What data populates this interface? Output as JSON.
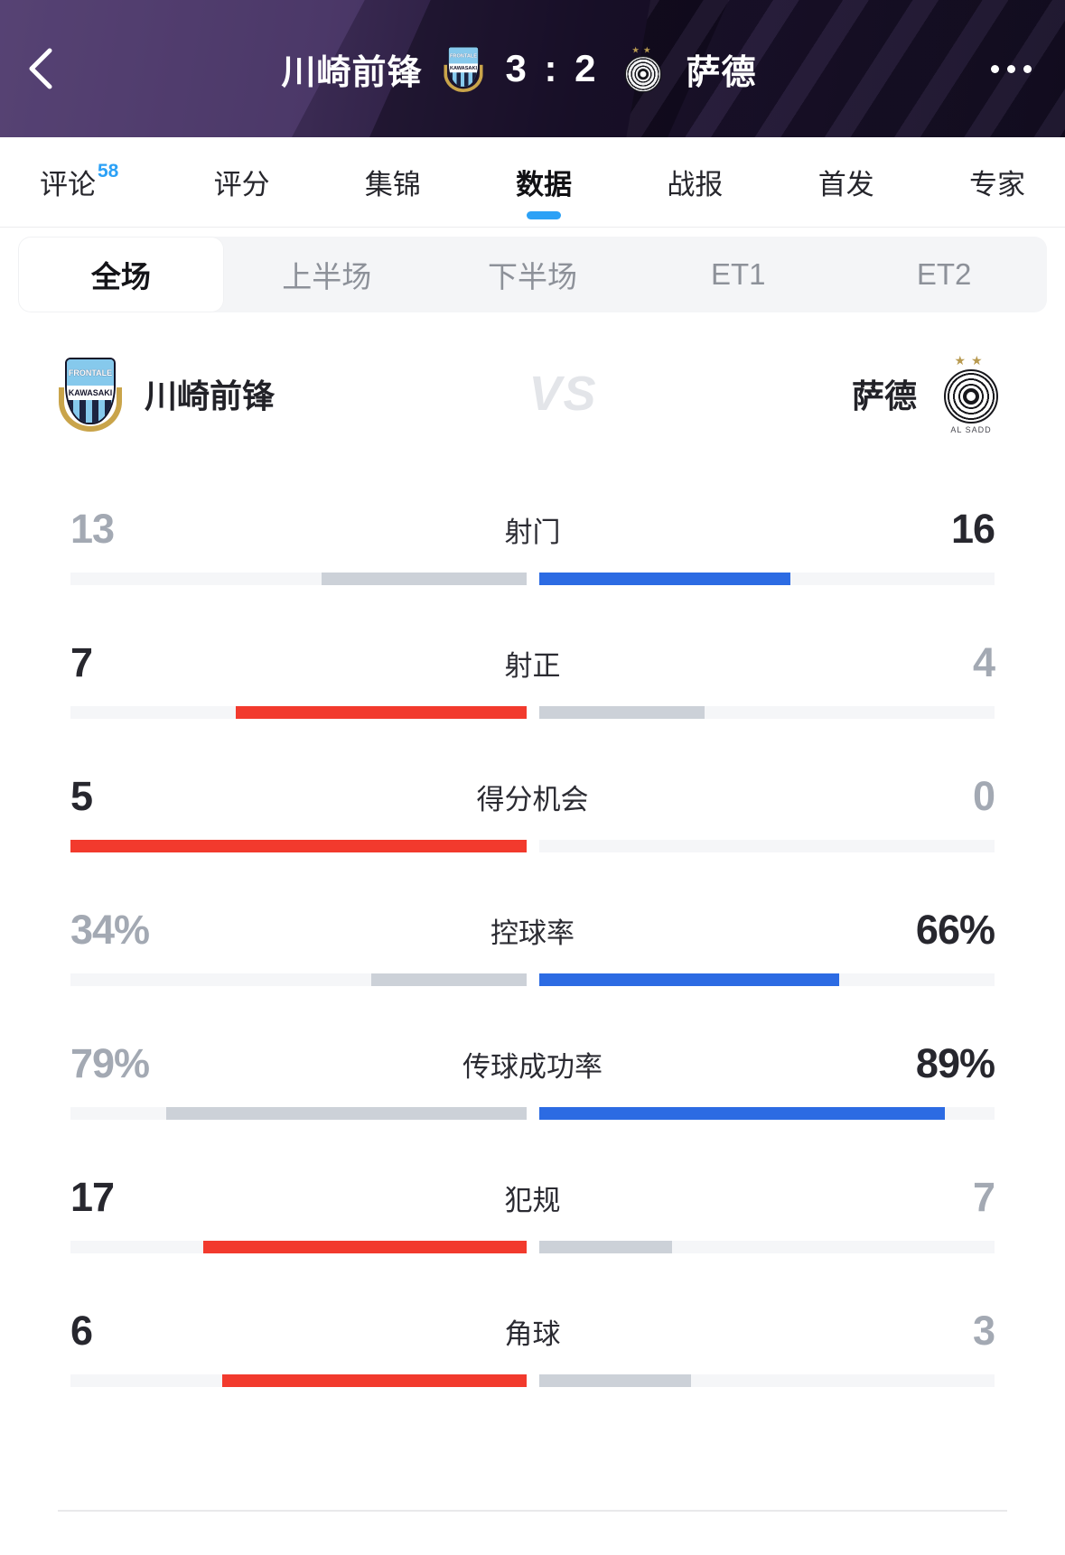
{
  "header": {
    "home_team": "川崎前锋",
    "score": "3 : 2",
    "away_team": "萨德"
  },
  "tabs": [
    {
      "label": "评论",
      "badge": "58"
    },
    {
      "label": "评分"
    },
    {
      "label": "集锦"
    },
    {
      "label": "数据"
    },
    {
      "label": "战报"
    },
    {
      "label": "首发"
    },
    {
      "label": "专家"
    }
  ],
  "period_tabs": [
    {
      "label": "全场"
    },
    {
      "label": "上半场"
    },
    {
      "label": "下半场"
    },
    {
      "label": "ET1"
    },
    {
      "label": "ET2"
    }
  ],
  "teams": {
    "home": "川崎前锋",
    "away": "萨德",
    "vs_label": "VS"
  },
  "logos": {
    "kawasaki_top": "FRONTALE",
    "kawasaki_band": "KAWASAKI",
    "alsadd_stars": "★★",
    "alsadd_name": "AL SADD"
  },
  "colors": {
    "bar_red": "#f23a2d",
    "bar_blue": "#2c6be3",
    "bar_gray": "#ccd1d8",
    "track": "#f5f6f8",
    "value_dark": "#27272e",
    "value_gray": "#a3a9b3",
    "accent_blue": "#2ca1f6"
  },
  "chart_data": {
    "type": "bar",
    "title": "全场数据 川崎前锋 vs 萨德",
    "categories": [
      "射门",
      "射正",
      "得分机会",
      "控球率",
      "传球成功率",
      "犯规",
      "角球"
    ],
    "series": [
      {
        "name": "川崎前锋",
        "values": [
          13,
          7,
          5,
          34,
          79,
          17,
          6
        ]
      },
      {
        "name": "萨德",
        "values": [
          16,
          4,
          0,
          66,
          89,
          7,
          3
        ]
      }
    ]
  },
  "stats": [
    {
      "label": "射门",
      "home": 13,
      "away": 16,
      "home_display": "13",
      "away_display": "16",
      "is_percent": false
    },
    {
      "label": "射正",
      "home": 7,
      "away": 4,
      "home_display": "7",
      "away_display": "4",
      "is_percent": false
    },
    {
      "label": "得分机会",
      "home": 5,
      "away": 0,
      "home_display": "5",
      "away_display": "0",
      "is_percent": false
    },
    {
      "label": "控球率",
      "home": 34,
      "away": 66,
      "home_display": "34%",
      "away_display": "66%",
      "is_percent": true
    },
    {
      "label": "传球成功率",
      "home": 79,
      "away": 89,
      "home_display": "79%",
      "away_display": "89%",
      "is_percent": true
    },
    {
      "label": "犯规",
      "home": 17,
      "away": 7,
      "home_display": "17",
      "away_display": "7",
      "is_percent": false
    },
    {
      "label": "角球",
      "home": 6,
      "away": 3,
      "home_display": "6",
      "away_display": "3",
      "is_percent": false
    }
  ]
}
